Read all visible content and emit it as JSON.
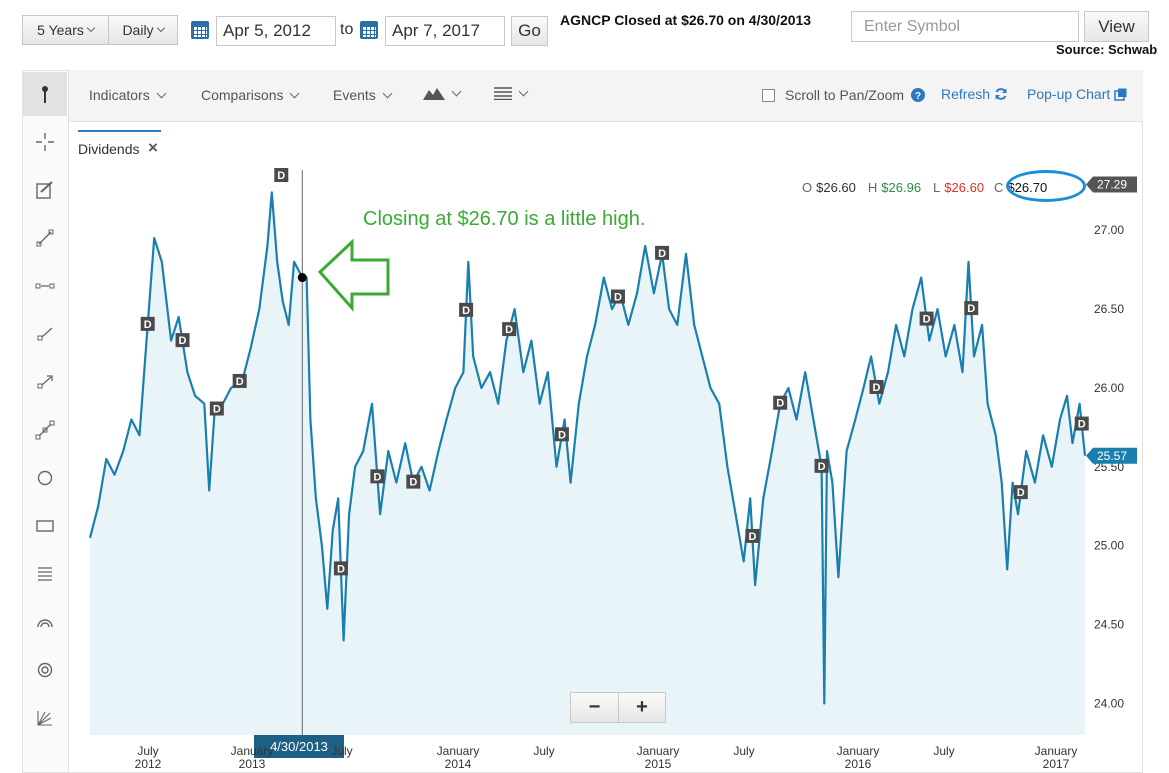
{
  "controls": {
    "range_select": "5 Years",
    "interval_select": "Daily",
    "from_date": "Apr 5, 2012",
    "to_label": "to",
    "to_date": "Apr 7, 2017",
    "go_label": "Go",
    "headline": "AGNCP Closed at $26.70 on 4/30/2013",
    "symbol_placeholder": "Enter Symbol",
    "view_label": "View",
    "source": "Source: Schwab"
  },
  "toolbar": {
    "indicators": "Indicators",
    "comparisons": "Comparisons",
    "events": "Events",
    "scroll_label": "Scroll to Pan/Zoom",
    "refresh": "Refresh",
    "popup": "Pop-up Chart"
  },
  "tab": {
    "label": "Dividends"
  },
  "ohlc": {
    "o_label": "O",
    "o_value": "$26.60",
    "h_label": "H",
    "h_value": "$26.96",
    "l_label": "L",
    "l_value": "$26.60",
    "c_label": "C",
    "c_value": "$26.70"
  },
  "annotation": "Closing at $26.70 is a little high.",
  "cursor_date": "4/30/2013",
  "zoom": {
    "minus": "−",
    "plus": "+"
  },
  "colors": {
    "line": "#1a7fae",
    "fill": "#e9f4f9",
    "annotation": "#3aaa35",
    "highlight": "#1a8fd8",
    "high_text": "#2a8a4a",
    "low_text": "#d9342b"
  },
  "icons": [
    "cursor-icon",
    "crosshair-icon",
    "annotate-icon",
    "trendline-icon",
    "segment-icon",
    "ray-icon",
    "arrow-ray-icon",
    "channel-icon",
    "ellipse-icon",
    "rectangle-icon",
    "fibonacci-icon",
    "arc-icon",
    "target-icon",
    "gann-icon"
  ],
  "chart_data": {
    "type": "line",
    "title": "AGNCP",
    "x_range": [
      "2012-04-05",
      "2017-04-07"
    ],
    "ylim": [
      23.8,
      27.35
    ],
    "y_ticks": [
      "24.00",
      "24.50",
      "25.00",
      "25.50",
      "26.00",
      "26.50",
      "27.00"
    ],
    "max_label": "27.29",
    "last_label": "25.57",
    "x_ticks": [
      {
        "label": "July",
        "year": "2012"
      },
      {
        "label": "January",
        "year": "2013"
      },
      {
        "label": "July",
        "year": ""
      },
      {
        "label": "January",
        "year": "2014"
      },
      {
        "label": "July",
        "year": ""
      },
      {
        "label": "January",
        "year": "2015"
      },
      {
        "label": "July",
        "year": ""
      },
      {
        "label": "January",
        "year": "2016"
      },
      {
        "label": "July",
        "year": ""
      },
      {
        "label": "January",
        "year": "2017"
      }
    ],
    "series": [
      {
        "values": [
          [
            "2012-04-05",
            25.05
          ],
          [
            "2012-04-20",
            25.25
          ],
          [
            "2012-05-05",
            25.55
          ],
          [
            "2012-05-20",
            25.45
          ],
          [
            "2012-06-05",
            25.6
          ],
          [
            "2012-06-20",
            25.8
          ],
          [
            "2012-07-05",
            25.7
          ],
          [
            "2012-07-20",
            26.4
          ],
          [
            "2012-08-01",
            26.95
          ],
          [
            "2012-08-15",
            26.8
          ],
          [
            "2012-09-01",
            26.3
          ],
          [
            "2012-09-15",
            26.45
          ],
          [
            "2012-10-01",
            26.1
          ],
          [
            "2012-10-15",
            25.95
          ],
          [
            "2012-11-01",
            25.9
          ],
          [
            "2012-11-10",
            25.35
          ],
          [
            "2012-11-20",
            25.85
          ],
          [
            "2012-12-05",
            25.9
          ],
          [
            "2012-12-20",
            26.0
          ],
          [
            "2013-01-10",
            26.05
          ],
          [
            "2013-01-25",
            26.25
          ],
          [
            "2013-02-10",
            26.5
          ],
          [
            "2013-02-25",
            26.9
          ],
          [
            "2013-03-05",
            27.24
          ],
          [
            "2013-03-15",
            26.8
          ],
          [
            "2013-03-25",
            26.55
          ],
          [
            "2013-04-05",
            26.4
          ],
          [
            "2013-04-15",
            26.8
          ],
          [
            "2013-04-30",
            26.7
          ],
          [
            "2013-05-08",
            26.7
          ],
          [
            "2013-05-15",
            25.8
          ],
          [
            "2013-05-25",
            25.3
          ],
          [
            "2013-06-05",
            25.0
          ],
          [
            "2013-06-15",
            24.6
          ],
          [
            "2013-06-25",
            25.1
          ],
          [
            "2013-07-05",
            25.3
          ],
          [
            "2013-07-15",
            24.4
          ],
          [
            "2013-07-25",
            25.2
          ],
          [
            "2013-08-05",
            25.5
          ],
          [
            "2013-08-20",
            25.6
          ],
          [
            "2013-09-05",
            25.9
          ],
          [
            "2013-09-20",
            25.2
          ],
          [
            "2013-10-05",
            25.6
          ],
          [
            "2013-10-20",
            25.4
          ],
          [
            "2013-11-05",
            25.65
          ],
          [
            "2013-11-20",
            25.4
          ],
          [
            "2013-12-05",
            25.5
          ],
          [
            "2013-12-20",
            25.35
          ],
          [
            "2014-01-05",
            25.6
          ],
          [
            "2014-01-20",
            25.8
          ],
          [
            "2014-02-05",
            26.0
          ],
          [
            "2014-02-20",
            26.1
          ],
          [
            "2014-03-01",
            26.8
          ],
          [
            "2014-03-10",
            26.2
          ],
          [
            "2014-03-25",
            26.0
          ],
          [
            "2014-04-10",
            26.1
          ],
          [
            "2014-04-25",
            25.9
          ],
          [
            "2014-05-10",
            26.3
          ],
          [
            "2014-05-25",
            26.5
          ],
          [
            "2014-06-10",
            26.1
          ],
          [
            "2014-06-25",
            26.3
          ],
          [
            "2014-07-10",
            25.9
          ],
          [
            "2014-07-25",
            26.1
          ],
          [
            "2014-08-10",
            25.5
          ],
          [
            "2014-08-25",
            25.8
          ],
          [
            "2014-09-05",
            25.4
          ],
          [
            "2014-09-20",
            25.9
          ],
          [
            "2014-10-05",
            26.2
          ],
          [
            "2014-10-20",
            26.4
          ],
          [
            "2014-11-05",
            26.7
          ],
          [
            "2014-11-20",
            26.5
          ],
          [
            "2014-12-05",
            26.6
          ],
          [
            "2014-12-20",
            26.4
          ],
          [
            "2015-01-05",
            26.6
          ],
          [
            "2015-01-20",
            26.9
          ],
          [
            "2015-02-05",
            26.6
          ],
          [
            "2015-02-20",
            26.85
          ],
          [
            "2015-03-05",
            26.5
          ],
          [
            "2015-03-20",
            26.4
          ],
          [
            "2015-04-05",
            26.85
          ],
          [
            "2015-04-20",
            26.4
          ],
          [
            "2015-05-05",
            26.2
          ],
          [
            "2015-05-20",
            26.0
          ],
          [
            "2015-06-05",
            25.9
          ],
          [
            "2015-06-20",
            25.5
          ],
          [
            "2015-07-05",
            25.2
          ],
          [
            "2015-07-20",
            24.9
          ],
          [
            "2015-08-01",
            25.3
          ],
          [
            "2015-08-10",
            24.75
          ],
          [
            "2015-08-25",
            25.3
          ],
          [
            "2015-09-10",
            25.6
          ],
          [
            "2015-09-25",
            25.9
          ],
          [
            "2015-10-10",
            26.0
          ],
          [
            "2015-10-25",
            25.8
          ],
          [
            "2015-11-10",
            26.1
          ],
          [
            "2015-11-25",
            25.8
          ],
          [
            "2015-12-10",
            25.5
          ],
          [
            "2015-12-15",
            24.0
          ],
          [
            "2015-12-20",
            25.6
          ],
          [
            "2015-12-30",
            25.4
          ],
          [
            "2016-01-10",
            24.8
          ],
          [
            "2016-01-25",
            25.6
          ],
          [
            "2016-02-10",
            25.8
          ],
          [
            "2016-02-25",
            26.0
          ],
          [
            "2016-03-10",
            26.2
          ],
          [
            "2016-03-25",
            25.9
          ],
          [
            "2016-04-10",
            26.1
          ],
          [
            "2016-04-25",
            26.4
          ],
          [
            "2016-05-10",
            26.2
          ],
          [
            "2016-05-25",
            26.5
          ],
          [
            "2016-06-10",
            26.7
          ],
          [
            "2016-06-25",
            26.3
          ],
          [
            "2016-07-10",
            26.5
          ],
          [
            "2016-07-25",
            26.2
          ],
          [
            "2016-08-10",
            26.4
          ],
          [
            "2016-08-25",
            26.1
          ],
          [
            "2016-09-05",
            26.8
          ],
          [
            "2016-09-15",
            26.2
          ],
          [
            "2016-09-30",
            26.4
          ],
          [
            "2016-10-10",
            25.9
          ],
          [
            "2016-10-25",
            25.7
          ],
          [
            "2016-11-05",
            25.4
          ],
          [
            "2016-11-15",
            24.85
          ],
          [
            "2016-11-25",
            25.4
          ],
          [
            "2016-12-05",
            25.2
          ],
          [
            "2016-12-20",
            25.6
          ],
          [
            "2017-01-05",
            25.4
          ],
          [
            "2017-01-20",
            25.7
          ],
          [
            "2017-02-05",
            25.5
          ],
          [
            "2017-02-20",
            25.8
          ],
          [
            "2017-03-05",
            25.95
          ],
          [
            "2017-03-15",
            25.65
          ],
          [
            "2017-03-28",
            25.9
          ],
          [
            "2017-04-07",
            25.57
          ]
        ]
      }
    ],
    "dividend_markers": [
      "2012-07-20",
      "2012-09-22",
      "2012-11-24",
      "2013-01-05",
      "2013-07-10",
      "2013-09-15",
      "2013-11-20",
      "2014-02-25",
      "2014-05-15",
      "2014-08-20",
      "2014-12-01",
      "2015-02-20",
      "2015-08-05",
      "2015-09-25",
      "2015-12-10",
      "2016-03-20",
      "2016-06-20",
      "2016-09-10",
      "2016-12-10",
      "2017-04-01"
    ],
    "cursor": {
      "date": "2013-04-30",
      "value": 26.7
    }
  }
}
